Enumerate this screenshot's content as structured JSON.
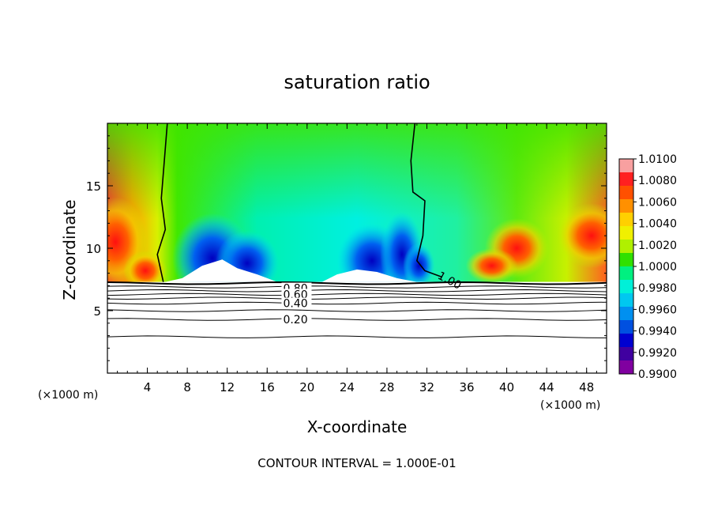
{
  "chart_data": {
    "type": "heatmap",
    "title": "saturation ratio",
    "xlabel": "X-coordinate",
    "ylabel": "Z-coordinate",
    "x_unit_left": "(×1000 m)",
    "x_unit_right": "(×1000 m)",
    "xlim": [
      0,
      50
    ],
    "ylim": [
      0,
      20
    ],
    "x_ticks": [
      4,
      8,
      12,
      16,
      20,
      24,
      28,
      32,
      36,
      40,
      44,
      48
    ],
    "y_ticks": [
      5,
      10,
      15
    ],
    "colorbar": {
      "min": 0.99,
      "max": 1.01,
      "labels": [
        "1.0100",
        "1.0080",
        "1.0060",
        "1.0040",
        "1.0020",
        "1.0000",
        "0.9980",
        "0.9960",
        "0.9940",
        "0.9920",
        "0.9900"
      ],
      "colors": [
        "#f8a0a0",
        "#ff2020",
        "#ff5000",
        "#ff9000",
        "#ffd000",
        "#f0f000",
        "#b0f000",
        "#30e000",
        "#00f080",
        "#00f0d8",
        "#00c8f0",
        "#0090f0",
        "#0050e0",
        "#0000d0",
        "#4000a0",
        "#8000a0"
      ]
    },
    "cloud_base_z": 7.3,
    "contour_labels": [
      {
        "value": "1.00",
        "x": 33.2,
        "z": 7.9
      },
      {
        "value": "0.80",
        "x": 17.6,
        "z": 6.8
      },
      {
        "value": "0.60",
        "x": 17.6,
        "z": 6.3
      },
      {
        "value": "0.40",
        "x": 17.6,
        "z": 5.6
      },
      {
        "value": "0.20",
        "x": 17.6,
        "z": 4.3
      }
    ],
    "contour_lines_z": [
      2.9,
      4.3,
      5.0,
      5.6,
      6.0,
      6.3,
      6.6,
      6.9,
      7.2
    ],
    "footer": "CONTOUR INTERVAL = 1.000E-01"
  }
}
